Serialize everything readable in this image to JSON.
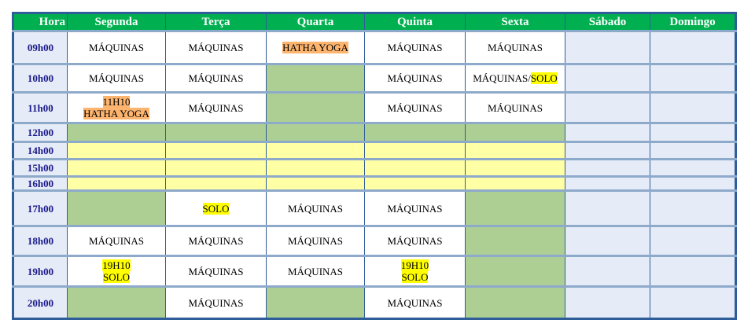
{
  "colors": {
    "header": "#00b050",
    "green_cell": "#aecf94",
    "yellow_cell": "#ffffa6",
    "weekend": "#e6ecf7",
    "highlight_orange": "#fdb46e",
    "highlight_yellow": "#ffff00"
  },
  "headers": [
    "Hora",
    "Segunda",
    "Terça",
    "Quarta",
    "Quinta",
    "Sexta",
    "Sábado",
    "Domingo"
  ],
  "rows": [
    {
      "hour": "09h00",
      "cells": [
        {
          "bg": "white",
          "lines": [
            [
              {
                "t": "MÁQUINAS"
              }
            ]
          ]
        },
        {
          "bg": "white",
          "lines": [
            [
              {
                "t": "MÁQUINAS"
              }
            ]
          ]
        },
        {
          "bg": "white",
          "lines": [
            [
              {
                "t": "HATHA YOGA",
                "hl": "orange"
              }
            ]
          ]
        },
        {
          "bg": "white",
          "lines": [
            [
              {
                "t": "MÁQUINAS"
              }
            ]
          ]
        },
        {
          "bg": "white",
          "lines": [
            [
              {
                "t": "MÁQUINAS"
              }
            ]
          ]
        },
        {
          "bg": "weekend"
        },
        {
          "bg": "weekend"
        }
      ]
    },
    {
      "hour": "10h00",
      "cells": [
        {
          "bg": "white",
          "lines": [
            [
              {
                "t": "MÁQUINAS"
              }
            ]
          ]
        },
        {
          "bg": "white",
          "lines": [
            [
              {
                "t": "MÁQUINAS"
              }
            ]
          ]
        },
        {
          "bg": "green"
        },
        {
          "bg": "white",
          "lines": [
            [
              {
                "t": "MÁQUINAS"
              }
            ]
          ]
        },
        {
          "bg": "white",
          "lines": [
            [
              {
                "t": "MÁQUINAS/"
              },
              {
                "t": "SOLO",
                "hl": "yellow"
              }
            ]
          ]
        },
        {
          "bg": "weekend"
        },
        {
          "bg": "weekend"
        }
      ]
    },
    {
      "hour": "11h00",
      "cells": [
        {
          "bg": "white",
          "lines": [
            [
              {
                "t": "11H10",
                "hl": "orange"
              }
            ],
            [
              {
                "t": "HATHA YOGA",
                "hl": "orange"
              }
            ]
          ]
        },
        {
          "bg": "white",
          "lines": [
            [
              {
                "t": "MÁQUINAS"
              }
            ]
          ]
        },
        {
          "bg": "green"
        },
        {
          "bg": "white",
          "lines": [
            [
              {
                "t": "MÁQUINAS"
              }
            ]
          ]
        },
        {
          "bg": "white",
          "lines": [
            [
              {
                "t": "MÁQUINAS"
              }
            ]
          ]
        },
        {
          "bg": "weekend"
        },
        {
          "bg": "weekend"
        }
      ]
    },
    {
      "hour": "12h00",
      "cells": [
        {
          "bg": "green"
        },
        {
          "bg": "green"
        },
        {
          "bg": "green"
        },
        {
          "bg": "green"
        },
        {
          "bg": "green"
        },
        {
          "bg": "weekend"
        },
        {
          "bg": "weekend"
        }
      ]
    },
    {
      "hour": "14h00",
      "cells": [
        {
          "bg": "yellow"
        },
        {
          "bg": "yellow"
        },
        {
          "bg": "yellow"
        },
        {
          "bg": "yellow"
        },
        {
          "bg": "yellow"
        },
        {
          "bg": "weekend"
        },
        {
          "bg": "weekend"
        }
      ]
    },
    {
      "hour": "15h00",
      "cells": [
        {
          "bg": "yellow"
        },
        {
          "bg": "yellow"
        },
        {
          "bg": "yellow"
        },
        {
          "bg": "yellow"
        },
        {
          "bg": "yellow"
        },
        {
          "bg": "weekend"
        },
        {
          "bg": "weekend"
        }
      ]
    },
    {
      "hour": "16h00",
      "cells": [
        {
          "bg": "yellow"
        },
        {
          "bg": "yellow"
        },
        {
          "bg": "yellow"
        },
        {
          "bg": "yellow"
        },
        {
          "bg": "yellow"
        },
        {
          "bg": "weekend"
        },
        {
          "bg": "weekend"
        }
      ]
    },
    {
      "hour": "17h00",
      "cells": [
        {
          "bg": "green"
        },
        {
          "bg": "white",
          "lines": [
            [
              {
                "t": "SOLO",
                "hl": "yellow"
              }
            ]
          ]
        },
        {
          "bg": "white",
          "lines": [
            [
              {
                "t": "MÁQUINAS"
              }
            ]
          ]
        },
        {
          "bg": "white",
          "lines": [
            [
              {
                "t": "MÁQUINAS"
              }
            ]
          ]
        },
        {
          "bg": "green"
        },
        {
          "bg": "weekend"
        },
        {
          "bg": "weekend"
        }
      ]
    },
    {
      "hour": "18h00",
      "cells": [
        {
          "bg": "white",
          "lines": [
            [
              {
                "t": "MÁQUINAS"
              }
            ]
          ]
        },
        {
          "bg": "white",
          "lines": [
            [
              {
                "t": "MÁQUINAS"
              }
            ]
          ]
        },
        {
          "bg": "white",
          "lines": [
            [
              {
                "t": "MÁQUINAS"
              }
            ]
          ]
        },
        {
          "bg": "white",
          "lines": [
            [
              {
                "t": "MÁQUINAS"
              }
            ]
          ]
        },
        {
          "bg": "green"
        },
        {
          "bg": "weekend"
        },
        {
          "bg": "weekend"
        }
      ]
    },
    {
      "hour": "19h00",
      "cells": [
        {
          "bg": "white",
          "lines": [
            [
              {
                "t": "19H10",
                "hl": "yellow"
              }
            ],
            [
              {
                "t": "SOLO",
                "hl": "yellow"
              }
            ]
          ]
        },
        {
          "bg": "white",
          "lines": [
            [
              {
                "t": "MÁQUINAS"
              }
            ]
          ]
        },
        {
          "bg": "white",
          "lines": [
            [
              {
                "t": "MÁQUINAS"
              }
            ]
          ]
        },
        {
          "bg": "white",
          "lines": [
            [
              {
                "t": "19H10",
                "hl": "yellow"
              }
            ],
            [
              {
                "t": "SOLO",
                "hl": "yellow"
              }
            ]
          ]
        },
        {
          "bg": "green"
        },
        {
          "bg": "weekend"
        },
        {
          "bg": "weekend"
        }
      ]
    },
    {
      "hour": "20h00",
      "cells": [
        {
          "bg": "green"
        },
        {
          "bg": "white",
          "lines": [
            [
              {
                "t": "MÁQUINAS"
              }
            ]
          ]
        },
        {
          "bg": "green"
        },
        {
          "bg": "white",
          "lines": [
            [
              {
                "t": "MÁQUINAS"
              }
            ]
          ]
        },
        {
          "bg": "green"
        },
        {
          "bg": "weekend"
        },
        {
          "bg": "weekend"
        }
      ]
    }
  ]
}
